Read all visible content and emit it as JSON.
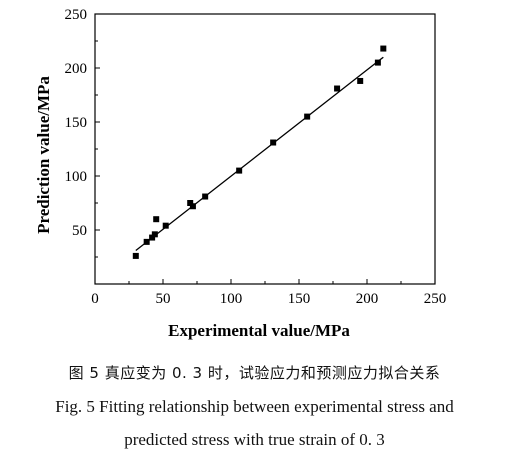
{
  "chart_data": {
    "type": "scatter",
    "xlabel": "Experimental value/MPa",
    "ylabel": "Prediction value/MPa",
    "xlim": [
      0,
      250
    ],
    "ylim": [
      0,
      250
    ],
    "x_ticks": [
      0,
      50,
      100,
      150,
      200,
      250
    ],
    "y_ticks": [
      50,
      100,
      150,
      200,
      250
    ],
    "grid": false,
    "legend": "none",
    "points": [
      {
        "x": 30,
        "y": 26
      },
      {
        "x": 38,
        "y": 39
      },
      {
        "x": 42,
        "y": 43
      },
      {
        "x": 44,
        "y": 46
      },
      {
        "x": 45,
        "y": 60
      },
      {
        "x": 52,
        "y": 54
      },
      {
        "x": 70,
        "y": 75
      },
      {
        "x": 72,
        "y": 72
      },
      {
        "x": 81,
        "y": 81
      },
      {
        "x": 106,
        "y": 105
      },
      {
        "x": 131,
        "y": 131
      },
      {
        "x": 156,
        "y": 155
      },
      {
        "x": 178,
        "y": 181
      },
      {
        "x": 195,
        "y": 188
      },
      {
        "x": 208,
        "y": 205
      },
      {
        "x": 212,
        "y": 218
      }
    ],
    "fit_line": {
      "x": [
        30,
        212
      ],
      "y": [
        31,
        210
      ]
    },
    "colors": {
      "marker": "#000000",
      "line": "#000000"
    }
  },
  "caption": {
    "line1": "图 5   真应变为 0. 3 时，试验应力和预测应力拟合关系",
    "line2": "Fig. 5    Fitting relationship between experimental stress and",
    "line3": "predicted stress with true strain of 0. 3"
  }
}
